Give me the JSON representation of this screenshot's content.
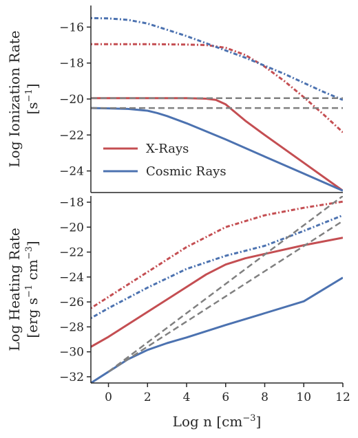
{
  "colors": {
    "xray": "#c44e52",
    "cosmic": "#4c72b0",
    "reference": "#808080",
    "axis": "#262626"
  },
  "chart_data": [
    {
      "type": "line",
      "panel": "top",
      "ylabel_line1": "Log Ionization Rate",
      "ylabel_line2_base": "[s",
      "ylabel_line2_sup": "−1",
      "ylabel_line2_end": "]",
      "xlim": [
        -0.9,
        12
      ],
      "ylim": [
        -25.2,
        -14.8
      ],
      "yticks": [
        -16,
        -18,
        -20,
        -22,
        -24
      ],
      "legend": {
        "placement": "lower-left",
        "entries": [
          {
            "label": "X-Rays",
            "color": "#c44e52"
          },
          {
            "label": "Cosmic Rays",
            "color": "#4c72b0"
          }
        ]
      },
      "series": [
        {
          "name": "X-Rays",
          "style": "solid",
          "color": "#c44e52",
          "x": [
            -0.9,
            0,
            2,
            4,
            5,
            5.5,
            6,
            6.5,
            7,
            8,
            10,
            12
          ],
          "y": [
            -19.95,
            -19.95,
            -19.95,
            -19.95,
            -19.98,
            -20.05,
            -20.3,
            -20.75,
            -21.2,
            -22.0,
            -23.55,
            -25.1
          ]
        },
        {
          "style": "dashdot",
          "color": "#c44e52",
          "x": [
            -0.9,
            0,
            2,
            4,
            5,
            6,
            7,
            8,
            9,
            10,
            11,
            12
          ],
          "y": [
            -16.95,
            -16.95,
            -16.95,
            -16.97,
            -17.0,
            -17.15,
            -17.55,
            -18.2,
            -19.0,
            -19.9,
            -20.85,
            -21.85
          ]
        },
        {
          "name": "Cosmic Rays",
          "style": "solid",
          "color": "#4c72b0",
          "x": [
            -0.9,
            0,
            1,
            2,
            2.5,
            3,
            4,
            6,
            8,
            10,
            12
          ],
          "y": [
            -20.5,
            -20.52,
            -20.55,
            -20.65,
            -20.78,
            -20.95,
            -21.35,
            -22.25,
            -23.2,
            -24.15,
            -25.1
          ]
        },
        {
          "style": "dashdot",
          "color": "#4c72b0",
          "x": [
            -0.9,
            0,
            1,
            2,
            3,
            4,
            5,
            6,
            7,
            8,
            9,
            10,
            11,
            12
          ],
          "y": [
            -15.5,
            -15.52,
            -15.6,
            -15.8,
            -16.15,
            -16.5,
            -16.9,
            -17.3,
            -17.7,
            -18.15,
            -18.6,
            -19.1,
            -19.6,
            -20.05
          ]
        },
        {
          "style": "dashed",
          "color": "#808080",
          "x": [
            -0.9,
            12
          ],
          "y": [
            -19.95,
            -19.95
          ]
        },
        {
          "style": "dashed",
          "color": "#808080",
          "x": [
            -0.9,
            12
          ],
          "y": [
            -20.5,
            -20.5
          ]
        }
      ]
    },
    {
      "type": "line",
      "panel": "bottom",
      "ylabel_line1": "Log Heating Rate",
      "ylabel_line2_a": "[erg s",
      "ylabel_line2_sup1": "−1",
      "ylabel_line2_b": " cm",
      "ylabel_line2_sup2": "−3",
      "ylabel_line2_end": "]",
      "xlabel_base": "Log n [cm",
      "xlabel_sup": "−3",
      "xlabel_end": "]",
      "xlim": [
        -0.9,
        12
      ],
      "ylim": [
        -32.5,
        -17.5
      ],
      "yticks": [
        -18,
        -20,
        -22,
        -24,
        -26,
        -28,
        -30,
        -32
      ],
      "xticks": [
        0,
        2,
        4,
        6,
        8,
        10,
        12
      ],
      "series": [
        {
          "name": "X-Rays",
          "style": "solid",
          "color": "#c44e52",
          "x": [
            -0.9,
            0,
            2,
            4,
            5,
            6,
            7,
            8,
            10,
            12
          ],
          "y": [
            -29.6,
            -28.8,
            -26.8,
            -24.8,
            -23.8,
            -23.0,
            -22.5,
            -22.15,
            -21.45,
            -20.85
          ]
        },
        {
          "style": "dashdot",
          "color": "#c44e52",
          "x": [
            -0.9,
            0,
            2,
            4,
            6,
            8,
            10,
            12
          ],
          "y": [
            -26.5,
            -25.6,
            -23.6,
            -21.6,
            -20.0,
            -19.05,
            -18.45,
            -17.95
          ]
        },
        {
          "name": "Cosmic Rays",
          "style": "solid",
          "color": "#4c72b0",
          "x": [
            -0.9,
            0,
            1,
            2,
            3,
            4,
            6,
            8,
            10,
            12
          ],
          "y": [
            -32.5,
            -31.6,
            -30.6,
            -29.85,
            -29.3,
            -28.85,
            -27.85,
            -26.9,
            -25.95,
            -24.05
          ]
        },
        {
          "style": "dashdot",
          "color": "#4c72b0",
          "x": [
            -0.9,
            0,
            2,
            4,
            6,
            8,
            10,
            12
          ],
          "y": [
            -27.3,
            -26.5,
            -24.85,
            -23.35,
            -22.3,
            -21.5,
            -20.3,
            -19.05
          ]
        },
        {
          "style": "dashed",
          "color": "#808080",
          "x": [
            0,
            12
          ],
          "y": [
            -31.6,
            -17.5
          ]
        },
        {
          "style": "dashed",
          "color": "#808080",
          "x": [
            0,
            12
          ],
          "y": [
            -31.6,
            -19.5
          ]
        }
      ]
    }
  ]
}
